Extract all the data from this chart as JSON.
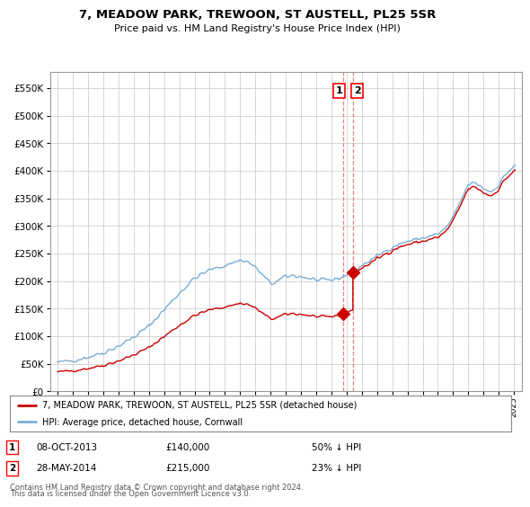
{
  "title": "7, MEADOW PARK, TREWOON, ST AUSTELL, PL25 5SR",
  "subtitle": "Price paid vs. HM Land Registry's House Price Index (HPI)",
  "sale1_date": "08-OCT-2013",
  "sale1_price": 140000,
  "sale1_label": "50% ↓ HPI",
  "sale1_x": 2013.77,
  "sale2_date": "28-MAY-2014",
  "sale2_price": 215000,
  "sale2_label": "23% ↓ HPI",
  "sale2_x": 2014.41,
  "legend_line1": "7, MEADOW PARK, TREWOON, ST AUSTELL, PL25 5SR (detached house)",
  "legend_line2": "HPI: Average price, detached house, Cornwall",
  "footnote1": "Contains HM Land Registry data © Crown copyright and database right 2024.",
  "footnote2": "This data is licensed under the Open Government Licence v3.0.",
  "hpi_color": "#7aadd4",
  "price_color": "#cc0000",
  "vline_color": "#e88080",
  "background_color": "#ffffff",
  "grid_color": "#d0d0d0",
  "ylim": [
    0,
    580000
  ],
  "xlim": [
    1994.5,
    2025.5
  ],
  "yticks": [
    0,
    50000,
    100000,
    150000,
    200000,
    250000,
    300000,
    350000,
    400000,
    450000,
    500000,
    550000
  ]
}
